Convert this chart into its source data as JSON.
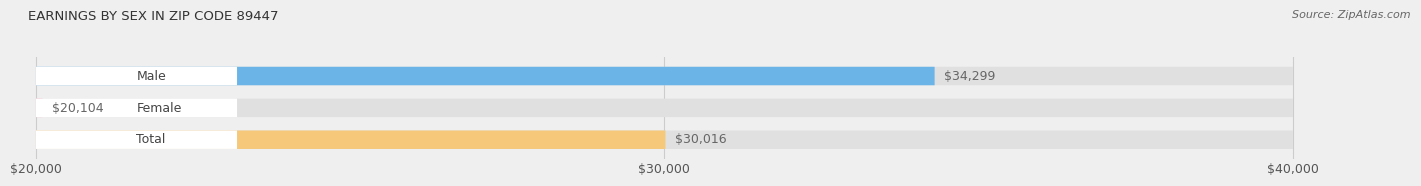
{
  "title": "EARNINGS BY SEX IN ZIP CODE 89447",
  "source": "Source: ZipAtlas.com",
  "categories": [
    "Male",
    "Female",
    "Total"
  ],
  "values": [
    34299,
    20104,
    30016
  ],
  "bar_colors": [
    "#6ab4e8",
    "#f4a0bc",
    "#f5c87a"
  ],
  "xmin": 20000,
  "xmax": 40000,
  "xticks": [
    20000,
    30000,
    40000
  ],
  "xtick_labels": [
    "$20,000",
    "$30,000",
    "$40,000"
  ],
  "bar_height": 0.58,
  "background_color": "#efefef",
  "bar_bg_color": "#e0e0e0",
  "title_fontsize": 9.5,
  "source_fontsize": 8,
  "tick_fontsize": 9,
  "label_fontsize": 9,
  "value_fontsize": 9
}
